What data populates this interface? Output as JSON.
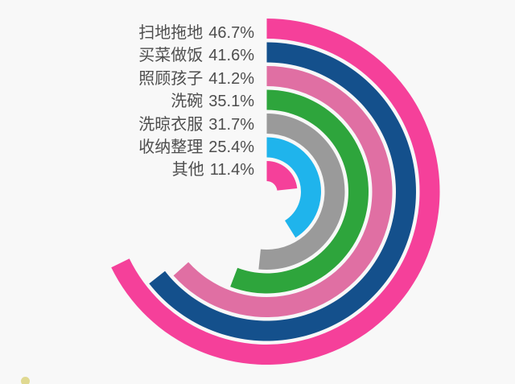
{
  "page": {
    "background": "#F8F8F8"
  },
  "chart_data": {
    "type": "radial_bar",
    "title": "",
    "categories": [
      "扫地拖地",
      "买菜做饭",
      "照顾孩子",
      "洗碗",
      "洗晾衣服",
      "收纳整理",
      "其他"
    ],
    "values": [
      46.7,
      41.6,
      41.2,
      35.1,
      31.7,
      25.4,
      11.4
    ],
    "value_labels": [
      "46.7%",
      "41.6%",
      "41.2%",
      "35.1%",
      "31.7%",
      "25.4%",
      "11.4%"
    ],
    "series_colors": [
      "#F5409A",
      "#14508C",
      "#E06FA3",
      "#2EA53C",
      "#9A9A9A",
      "#1FB4EC",
      "#F5409A"
    ],
    "text_color": "#4E4E4E",
    "background": "#F8F8F8",
    "direction": "clockwise",
    "start_angle_deg": 0,
    "end_angles_deg": [
      244,
      232,
      228,
      201,
      186,
      148,
      84
    ],
    "ring_order": "outermost_first",
    "legend_position": "left",
    "grid": false
  },
  "artifacts": {
    "corner_speck_color": "#DCD47F"
  }
}
